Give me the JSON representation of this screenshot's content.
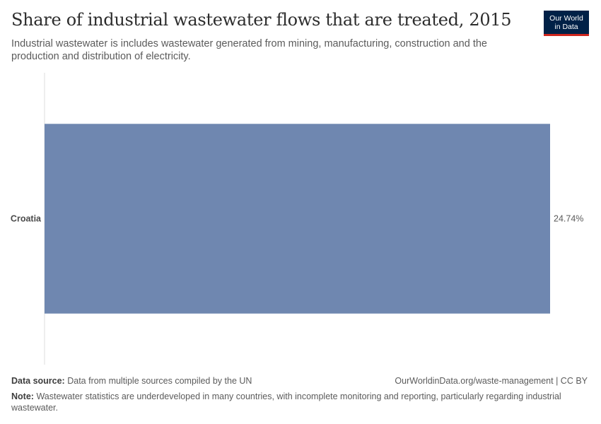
{
  "header": {
    "title": "Share of industrial wastewater flows that are treated, 2015",
    "subtitle": "Industrial wastewater is includes wastewater generated from mining, manufacturing, construction and the production and distribution of electricity."
  },
  "logo": {
    "line1": "Our World",
    "line2": "in Data"
  },
  "chart_data": {
    "type": "bar",
    "orientation": "horizontal",
    "categories": [
      "Croatia"
    ],
    "values": [
      24.74
    ],
    "value_labels": [
      "24.74%"
    ],
    "unit": "%",
    "xlim": [
      0,
      24.74
    ],
    "grid": false,
    "bar_color": "#6f87b0"
  },
  "footer": {
    "source_label": "Data source:",
    "source_text": "Data from multiple sources compiled by the UN",
    "url": "OurWorldinData.org/waste-management | CC BY",
    "note_label": "Note:",
    "note_text": "Wastewater statistics are underdeveloped in many countries, with incomplete monitoring and reporting, particularly regarding industrial wastewater."
  }
}
